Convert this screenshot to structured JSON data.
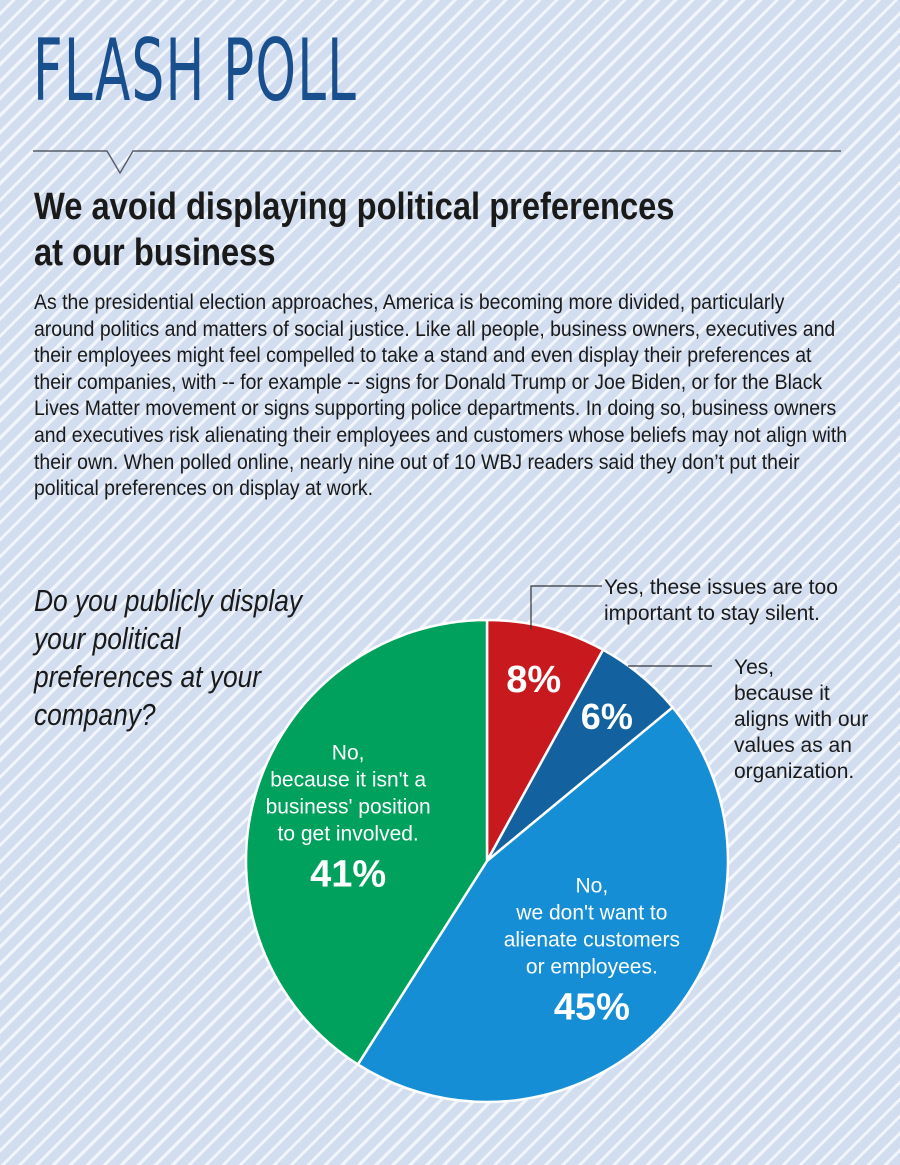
{
  "header": {
    "masthead": "FLASH POLL",
    "headline": "We avoid displaying political preferences at our business"
  },
  "body": {
    "intro": "As the presidential election approaches, America is becoming more divided, particularly around politics and matters of social justice. Like all people, business owners, executives and their employees might feel compelled to take a stand and even display their preferences at their companies, with -- for example -- signs for Donald Trump or Joe Biden, or for the Black Lives Matter movement or signs supporting police departments. In doing so, business owners and executives risk alienating their employees and customers whose beliefs may not align with their own. When polled online, nearly nine out of 10 WBJ readers said they don’t put their political preferences on display at work."
  },
  "chart_data": {
    "type": "pie",
    "title": "Do you publicly display your political preferences at your company?",
    "start_angle_deg": 0,
    "direction": "clockwise",
    "slices": [
      {
        "label": "Yes, these issues are too important to stay silent.",
        "label_lines": [
          "Yes, these issues are too",
          "important to stay silent."
        ],
        "value": 8,
        "display": "8%",
        "color": "#c8191f"
      },
      {
        "label": "Yes, because it aligns with our values as an organization.",
        "label_lines": [
          "Yes,",
          "because it",
          "aligns with our",
          "values as an",
          "organization."
        ],
        "value": 6,
        "display": "6%",
        "color": "#13619f"
      },
      {
        "label": "No, we don't want to alienate customers or employees.",
        "label_lines": [
          "No,",
          "we don't want to",
          "alienate customers",
          "or employees."
        ],
        "value": 45,
        "display": "45%",
        "color": "#158ed6"
      },
      {
        "label": "No, because it isn't a business' position to get involved.",
        "label_lines": [
          "No,",
          "because it isn't a",
          "business' position",
          "to get involved."
        ],
        "value": 41,
        "display": "41%",
        "color": "#00a15c"
      }
    ]
  }
}
